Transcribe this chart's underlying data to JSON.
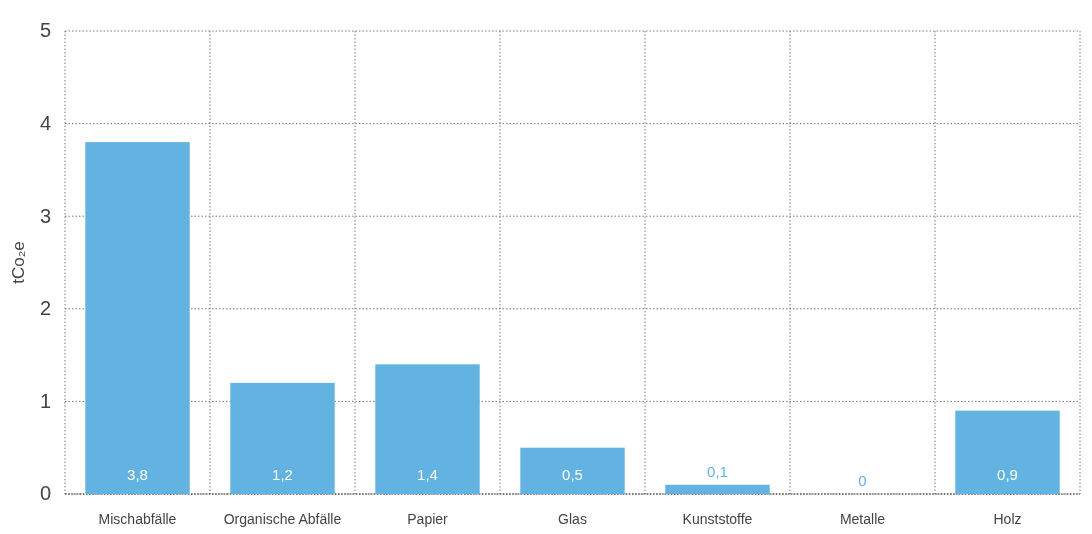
{
  "chart_data": {
    "type": "bar",
    "ylabel": "tCo₂e",
    "categories": [
      "Mischabfälle",
      "Organische Abfälle",
      "Papier",
      "Glas",
      "Kunststoffe",
      "Metalle",
      "Holz"
    ],
    "values": [
      3.8,
      1.2,
      1.4,
      0.5,
      0.1,
      0,
      0.9
    ],
    "value_labels": [
      "3,8",
      "1,2",
      "1,4",
      "0,5",
      "0,1",
      "0",
      "0,9"
    ],
    "color": "#62b2e2",
    "ylim": [
      0,
      5
    ],
    "yticks": [
      0,
      1,
      2,
      3,
      4,
      5
    ],
    "grid": true
  }
}
